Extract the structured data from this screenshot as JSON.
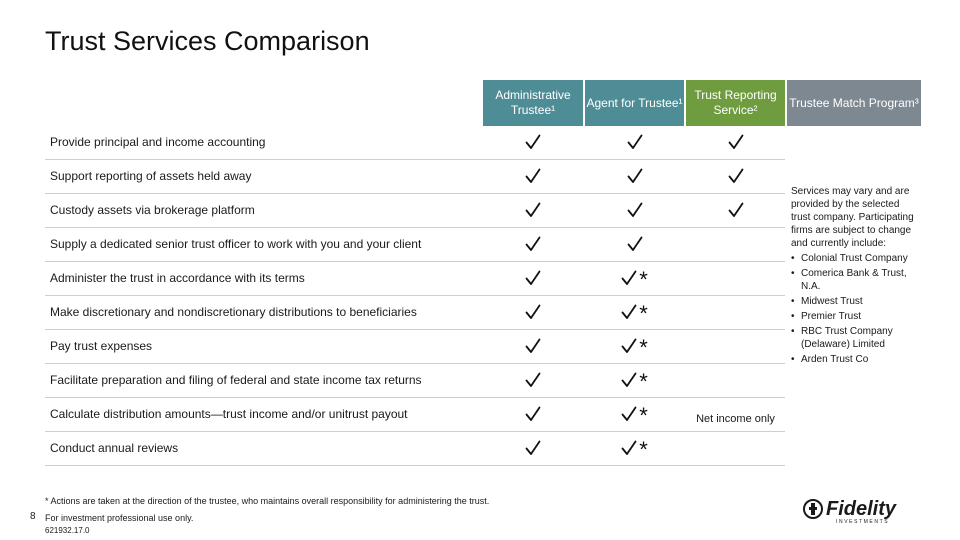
{
  "title": "Trust Services Comparison",
  "columns": [
    {
      "label": "Administrative Trustee¹",
      "color": "#4f8d96"
    },
    {
      "label": "Agent for Trustee¹",
      "color": "#4f8d96"
    },
    {
      "label": "Trust Reporting Service²",
      "color": "#6e9c3e"
    },
    {
      "label": "Trustee Match Program³",
      "color": "#7e8890"
    }
  ],
  "rows": [
    {
      "label": "Provide principal and income accounting",
      "cells": [
        "check",
        "check",
        "check"
      ]
    },
    {
      "label": "Support reporting of assets held away",
      "cells": [
        "check",
        "check",
        "check"
      ]
    },
    {
      "label": "Custody assets via brokerage platform",
      "cells": [
        "check",
        "check",
        "check"
      ]
    },
    {
      "label": "Supply a dedicated senior trust officer to work with you and your client",
      "cells": [
        "check",
        "check",
        ""
      ]
    },
    {
      "label": "Administer the trust in accordance with its terms",
      "cells": [
        "check",
        "check-star",
        ""
      ]
    },
    {
      "label": "Make discretionary and nondiscretionary distributions to beneficiaries",
      "cells": [
        "check",
        "check-star",
        ""
      ]
    },
    {
      "label": "Pay trust expenses",
      "cells": [
        "check",
        "check-star",
        ""
      ]
    },
    {
      "label": "Facilitate preparation and filing of federal and state income tax returns",
      "cells": [
        "check",
        "check-star",
        ""
      ]
    },
    {
      "label": "Calculate distribution amounts—trust income and/or unitrust payout",
      "cells": [
        "check",
        "check-star",
        "Net income only"
      ]
    },
    {
      "label": "Conduct annual reviews",
      "cells": [
        "check",
        "check-star",
        ""
      ]
    }
  ],
  "side_note": {
    "intro": "Services may vary and are provided by the selected trust company. Participating firms are subject to change and currently include:",
    "items": [
      "Colonial Trust Company",
      "Comerica Bank & Trust, N.A.",
      "Midwest Trust",
      "Premier Trust",
      "RBC Trust Company (Delaware) Limited",
      "Arden Trust Co"
    ]
  },
  "footer": {
    "footnote": "* Actions are taken at the direction of the trustee, who maintains overall responsibility for administering the trust.",
    "page_number": "8",
    "usage": "For investment professional use only.",
    "doc_id": "621932.17.0"
  },
  "logo": {
    "text": "Fidelity",
    "subtext": "INVESTMENTS",
    "color": "#1a1a1a"
  }
}
